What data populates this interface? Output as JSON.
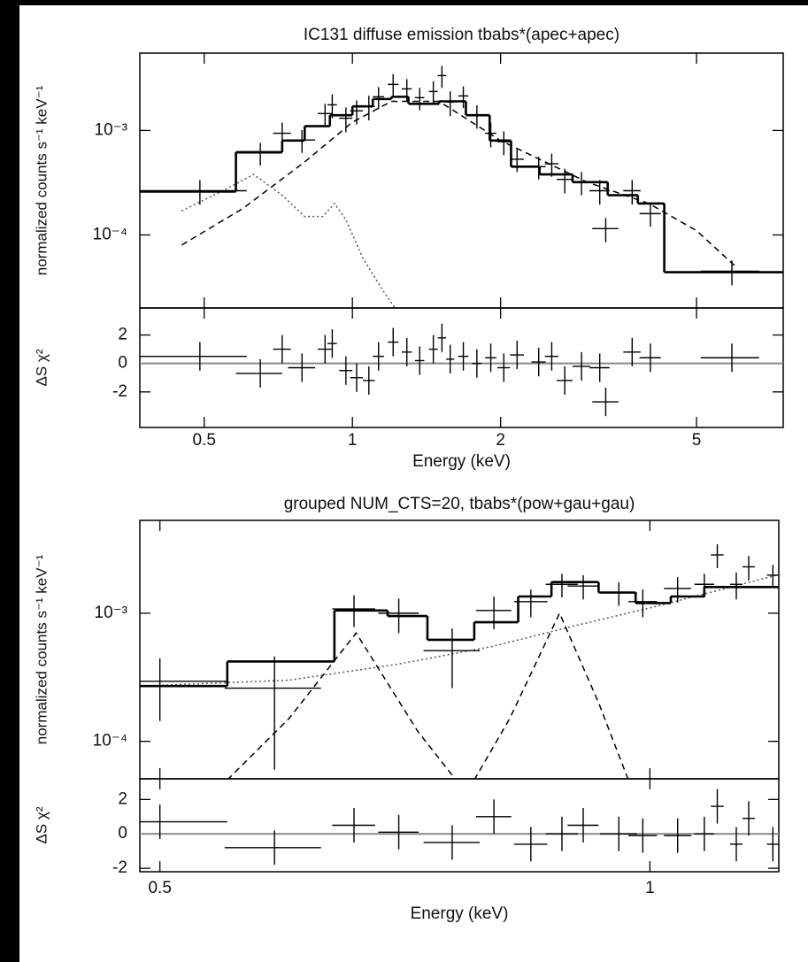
{
  "chart_data": [
    {
      "type": "spectrum",
      "title": "IC131 diffuse emission tbabs*(apec+apec)",
      "xlabel": "Energy (keV)",
      "ylabel": "normalized counts s⁻¹ keV⁻¹",
      "residual_ylabel": "ΔS χ²",
      "xscale": "log",
      "yscale": "log",
      "xlim": [
        0.37,
        7.5
      ],
      "xticks": [
        0.5,
        1,
        2,
        5
      ],
      "ylim": [
        2e-05,
        0.0055
      ],
      "yticks": [
        {
          "value": 0.001,
          "label": "10⁻³"
        },
        {
          "value": 0.0001,
          "label": "10⁻⁴"
        }
      ],
      "residual_ylim": [
        -4.5,
        3.9
      ],
      "residual_yticks": [
        -2,
        0,
        2
      ],
      "data": {
        "color": "#000000",
        "x": [
          0.49,
          0.65,
          0.72,
          0.79,
          0.88,
          0.91,
          0.97,
          1.02,
          1.08,
          1.13,
          1.21,
          1.29,
          1.37,
          1.46,
          1.52,
          1.58,
          1.68,
          1.79,
          1.91,
          2.03,
          2.16,
          2.39,
          2.54,
          2.7,
          2.92,
          3.18,
          3.27,
          3.7,
          4.03,
          5.9
        ],
        "xerr": [
          0.12,
          0.07,
          0.03,
          0.05,
          0.03,
          0.02,
          0.03,
          0.03,
          0.03,
          0.03,
          0.03,
          0.03,
          0.03,
          0.03,
          0.03,
          0.03,
          0.04,
          0.04,
          0.05,
          0.06,
          0.07,
          0.08,
          0.08,
          0.1,
          0.12,
          0.15,
          0.2,
          0.15,
          0.2,
          0.8
        ],
        "y": [
          0.000265,
          0.00061,
          0.00094,
          0.00081,
          0.00145,
          0.00176,
          0.00131,
          0.00154,
          0.0017,
          0.0021,
          0.00276,
          0.0025,
          0.00206,
          0.00236,
          0.00335,
          0.00187,
          0.00214,
          0.00139,
          0.00094,
          0.00078,
          0.00053,
          0.00045,
          0.00048,
          0.00034,
          0.00032,
          0.000265,
          0.000115,
          0.000265,
          0.00016,
          4.5e-05
        ],
        "yerr": [
          7e-05,
          0.00015,
          0.00025,
          0.0002,
          0.00035,
          0.00045,
          0.00035,
          0.0004,
          0.00045,
          0.0005,
          0.0007,
          0.0006,
          0.0005,
          0.0006,
          0.0008,
          0.0005,
          0.0005,
          0.00035,
          0.00025,
          0.0002,
          0.00013,
          0.00011,
          0.00012,
          9e-05,
          8e-05,
          7e-05,
          3e-05,
          7e-05,
          4e-05,
          1.2e-05
        ]
      },
      "residuals": {
        "values": [
          0.5,
          -0.7,
          1.0,
          -0.3,
          1.0,
          1.4,
          -0.5,
          -1.0,
          -1.2,
          0.5,
          1.5,
          0.8,
          0.2,
          1.0,
          1.8,
          0.3,
          0.5,
          0.0,
          0.4,
          -0.3,
          0.6,
          0.1,
          0.5,
          -1.2,
          -0.2,
          -0.3,
          -2.7,
          0.8,
          0.4,
          0.4
        ],
        "errors": [
          1,
          1,
          1,
          1,
          1,
          1,
          1,
          1,
          1,
          1,
          1,
          1,
          1,
          1,
          1,
          1,
          1,
          1,
          1,
          1,
          1,
          1,
          1,
          1,
          1,
          1,
          1,
          1,
          1,
          1
        ]
      },
      "model": {
        "color": "#000000",
        "bin_edges": [
          0.37,
          0.58,
          0.72,
          0.8,
          0.9,
          1.0,
          1.1,
          1.2,
          1.3,
          1.5,
          1.7,
          1.9,
          2.1,
          2.4,
          2.8,
          3.3,
          3.8,
          4.3,
          7.5
        ],
        "values": [
          0.00026,
          0.00062,
          0.0008,
          0.0011,
          0.0014,
          0.0017,
          0.002,
          0.0021,
          0.0018,
          0.0019,
          0.0014,
          0.0008,
          0.00045,
          0.00038,
          0.00032,
          0.00024,
          0.0002,
          4.4e-05
        ]
      },
      "components": [
        {
          "style": "dashed",
          "color": "#000000",
          "x": [
            0.45,
            0.6,
            0.8,
            1.0,
            1.2,
            1.5,
            2,
            3,
            4,
            5,
            6
          ],
          "values": [
            8e-05,
            0.00018,
            0.0005,
            0.0012,
            0.0019,
            0.0019,
            0.0008,
            0.00032,
            0.0002,
            0.00011,
            5e-05
          ]
        },
        {
          "style": "dotted",
          "color": "#555555",
          "x": [
            0.45,
            0.55,
            0.63,
            0.72,
            0.8,
            0.87,
            0.92,
            0.97,
            1.05,
            1.15,
            1.22
          ],
          "values": [
            0.00017,
            0.00027,
            0.00038,
            0.00024,
            0.00015,
            0.00015,
            0.0002,
            0.00014,
            6e-05,
            3e-05,
            2e-05
          ]
        }
      ]
    },
    {
      "type": "spectrum",
      "title": "grouped NUM_CTS=20, tbabs*(pow+gau+gau)",
      "xlabel": "Energy (keV)",
      "ylabel": "normalized counts s⁻¹ keV⁻¹",
      "residual_ylabel": "ΔS χ²",
      "xscale": "log",
      "yscale": "log",
      "xlim": [
        0.486,
        1.2
      ],
      "xticks": [
        0.5,
        1
      ],
      "ylim": [
        5.1e-05,
        0.0053
      ],
      "yticks": [
        {
          "value": 0.001,
          "label": "10⁻³"
        },
        {
          "value": 0.0001,
          "label": "10⁻⁴"
        }
      ],
      "residual_ylim": [
        -2.2,
        3.2
      ],
      "residual_yticks": [
        -2,
        0,
        2
      ],
      "data": {
        "color": "#000000",
        "x": [
          0.5,
          0.588,
          0.658,
          0.701,
          0.756,
          0.802,
          0.845,
          0.883,
          0.91,
          0.957,
          0.99,
          1.04,
          1.08,
          1.1,
          1.13,
          1.15,
          1.19
        ],
        "xerr": [
          0.05,
          0.04,
          0.02,
          0.02,
          0.03,
          0.02,
          0.02,
          0.02,
          0.02,
          0.025,
          0.02,
          0.02,
          0.015,
          0.01,
          0.01,
          0.01,
          0.01
        ],
        "y": [
          0.000294,
          0.00026,
          0.00108,
          0.001,
          0.00051,
          0.00105,
          0.00123,
          0.00168,
          0.00163,
          0.00144,
          0.00123,
          0.00156,
          0.00168,
          0.00285,
          0.00168,
          0.0023,
          0.00198
        ],
        "yerr": [
          0.00015,
          0.0002,
          0.0003,
          0.0003,
          0.00025,
          0.0003,
          0.0003,
          0.00035,
          0.00035,
          0.0003,
          0.0003,
          0.00035,
          0.00035,
          0.0006,
          0.0004,
          0.0005,
          0.0004
        ]
      },
      "residuals": {
        "values": [
          0.7,
          -0.8,
          0.5,
          0.1,
          -0.5,
          1.0,
          -0.6,
          0.0,
          0.5,
          0.0,
          -0.1,
          -0.1,
          0.0,
          1.6,
          -0.6,
          0.9,
          -0.6
        ],
        "errors": [
          1,
          1,
          1,
          1,
          1,
          1,
          1,
          1,
          1,
          1,
          1,
          1,
          1,
          1,
          1,
          1,
          1
        ]
      },
      "model": {
        "color": "#000000",
        "bin_edges": [
          0.486,
          0.55,
          0.64,
          0.69,
          0.73,
          0.78,
          0.83,
          0.87,
          0.93,
          0.98,
          1.03,
          1.08,
          1.2
        ],
        "values": [
          0.00027,
          0.00042,
          0.00105,
          0.00095,
          0.00062,
          0.00085,
          0.00135,
          0.00175,
          0.00145,
          0.0012,
          0.00135,
          0.0016
        ]
      },
      "components": [
        {
          "style": "dotted",
          "color": "#555555",
          "x": [
            0.486,
            0.6,
            0.7,
            0.8,
            0.9,
            1.0,
            1.1,
            1.2
          ],
          "values": [
            0.00027,
            0.0003,
            0.0004,
            0.00055,
            0.0008,
            0.0011,
            0.0015,
            0.002
          ]
        },
        {
          "style": "dashed",
          "color": "#000000",
          "x": [
            0.55,
            0.6,
            0.66,
            0.72,
            0.76
          ],
          "values": [
            5e-05,
            0.00015,
            0.0007,
            0.00012,
            5e-05
          ]
        },
        {
          "style": "dashed",
          "color": "#000000",
          "x": [
            0.78,
            0.82,
            0.88,
            0.93,
            0.97
          ],
          "values": [
            5e-05,
            0.00015,
            0.001,
            0.0002,
            5e-05
          ]
        }
      ]
    }
  ]
}
